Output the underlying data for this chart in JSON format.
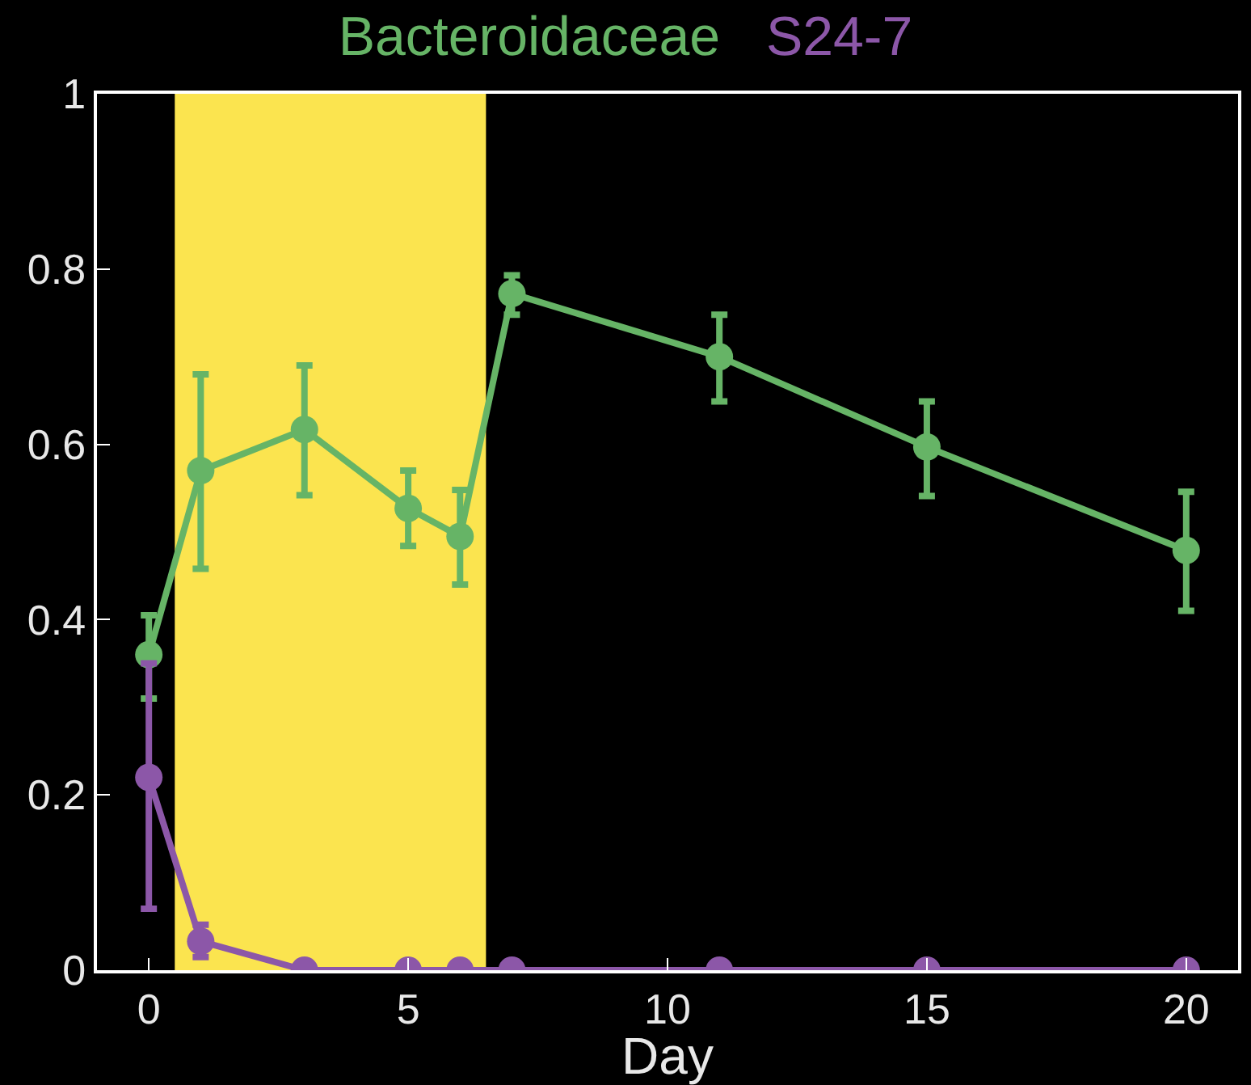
{
  "chart_data": {
    "type": "line",
    "xlabel": "Day",
    "series": [
      {
        "name": "Bacteroidaceae",
        "color": "#66b466",
        "x": [
          0,
          1,
          3,
          5,
          6,
          7,
          11,
          15,
          20
        ],
        "values": [
          0.36,
          0.57,
          0.617,
          0.527,
          0.495,
          0.772,
          0.7,
          0.597,
          0.479
        ],
        "errors": [
          [
            0.31,
            0.405
          ],
          [
            0.458,
            0.68
          ],
          [
            0.542,
            0.69
          ],
          [
            0.484,
            0.57
          ],
          [
            0.44,
            0.548
          ],
          [
            0.748,
            0.793
          ],
          [
            0.649,
            0.748
          ],
          [
            0.541,
            0.649
          ],
          [
            0.41,
            0.546
          ]
        ]
      },
      {
        "name": "S24-7",
        "color": "#8c57a8",
        "x": [
          0,
          1,
          3,
          5,
          6,
          7,
          11,
          15,
          20
        ],
        "values": [
          0.22,
          0.033,
          0,
          0,
          0,
          0,
          0,
          0,
          0
        ],
        "errors": [
          [
            0.07,
            0.35
          ],
          [
            0.015,
            0.052
          ],
          null,
          null,
          null,
          null,
          null,
          null,
          null
        ]
      }
    ],
    "xlim": [
      -1,
      21
    ],
    "xticks": [
      0,
      5,
      10,
      15,
      20
    ],
    "ylim": [
      0,
      1
    ],
    "yticks": [
      0,
      0.2,
      0.4,
      0.6,
      0.8,
      1
    ],
    "bands": [
      {
        "axis": "x",
        "from": 0.5,
        "to": 6.5,
        "color": "#fbe44f"
      }
    ],
    "marker": "circle",
    "line_style": "solid",
    "grid": false,
    "legend": false
  }
}
